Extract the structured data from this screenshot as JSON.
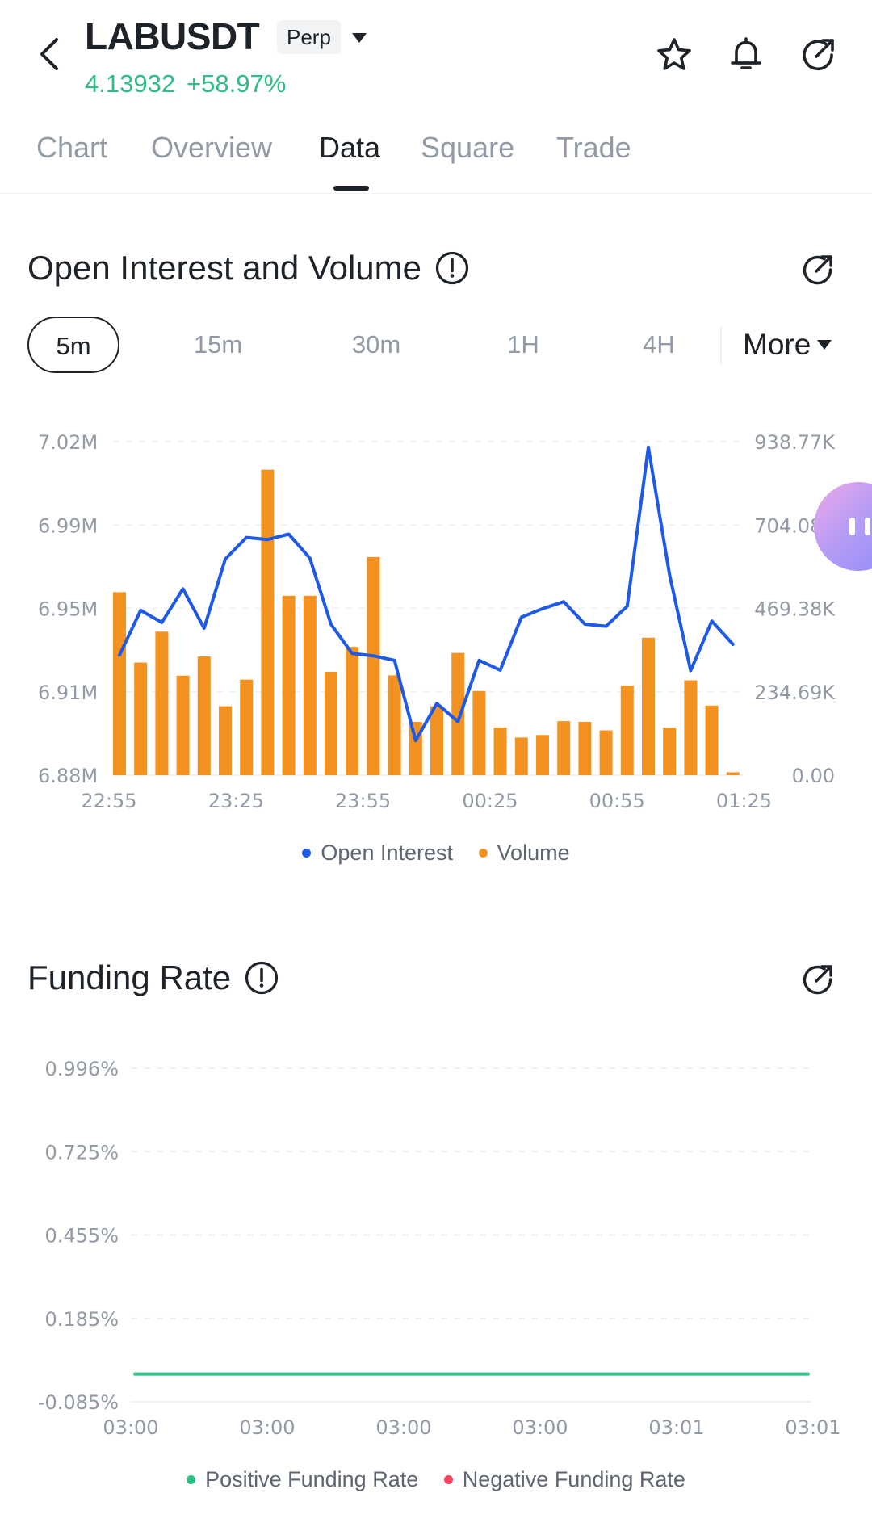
{
  "header": {
    "symbol": "LABUSDT",
    "badge": "Perp",
    "price": "4.13932",
    "change": "+58.97%",
    "icons": [
      "back-icon",
      "caret-down-icon",
      "star-icon",
      "bell-icon",
      "share-icon"
    ],
    "accent_green": "#2ebd85"
  },
  "tabs": [
    {
      "label": "Chart"
    },
    {
      "label": "Overview"
    },
    {
      "label": "Data",
      "active": true
    },
    {
      "label": "Square"
    },
    {
      "label": "Trade"
    }
  ],
  "oi_section": {
    "title": "Open Interest and Volume",
    "intervals": [
      "5m",
      "15m",
      "30m",
      "1H",
      "4H"
    ],
    "selected_interval": "5m",
    "more_label": "More",
    "legend": {
      "oi": "Open Interest",
      "volume": "Volume"
    }
  },
  "funding_section": {
    "title": "Funding Rate",
    "legend": {
      "positive": "Positive Funding Rate",
      "negative": "Negative Funding Rate"
    }
  },
  "chart_data": [
    {
      "type": "bar+line",
      "title": "Open Interest and Volume",
      "x_ticks": [
        "22:55",
        "23:25",
        "23:55",
        "00:25",
        "00:55",
        "01:25"
      ],
      "y_left_ticks": [
        "7.02M",
        "6.99M",
        "6.95M",
        "6.91M",
        "6.88M"
      ],
      "y_left_range": [
        6.88,
        7.02
      ],
      "y_right_ticks": [
        "938.77K",
        "704.08K",
        "469.38K",
        "234.69K",
        "0.00"
      ],
      "y_right_range": [
        0,
        938.77
      ],
      "grid": true,
      "legend_position": "bottom",
      "colors": {
        "oi": "#1e5ae6",
        "volume": "#f39220"
      },
      "series": [
        {
          "name": "Volume",
          "kind": "bar",
          "unit": "K",
          "values": [
            515,
            317,
            404,
            280,
            334,
            194,
            269,
            860,
            505,
            505,
            291,
            361,
            614,
            281,
            150,
            194,
            344,
            237,
            134,
            106,
            113,
            152,
            150,
            126,
            252,
            387,
            134,
            267,
            196,
            8
          ]
        },
        {
          "name": "Open Interest",
          "kind": "line",
          "unit": "M",
          "values": [
            6.9304,
            6.9492,
            6.9441,
            6.9582,
            6.9417,
            6.9707,
            6.9798,
            6.9789,
            6.9812,
            6.9711,
            6.9433,
            6.9311,
            6.9301,
            6.9282,
            6.8945,
            6.9101,
            6.9025,
            6.9282,
            6.9241,
            6.9463,
            6.9499,
            6.9528,
            6.9434,
            6.9425,
            6.9509,
            7.0177,
            6.9642,
            6.9239,
            6.9447,
            6.9349
          ]
        }
      ]
    },
    {
      "type": "line",
      "title": "Funding Rate",
      "x_ticks": [
        "03:00",
        "03:00",
        "03:00",
        "03:00",
        "03:01",
        "03:01"
      ],
      "y_ticks": [
        "0.996%",
        "0.725%",
        "0.455%",
        "0.185%",
        "-0.085%"
      ],
      "y_range": [
        -0.085,
        0.996
      ],
      "grid": true,
      "legend_position": "bottom",
      "colors": {
        "positive": "#2ebd85",
        "negative": "#f6465d"
      },
      "series": [
        {
          "name": "Positive Funding Rate",
          "values": [
            0.005,
            0.005,
            0.005,
            0.005,
            0.005,
            0.005,
            0.005,
            0.005,
            0.005,
            0.005,
            0.005,
            0.005,
            0.005,
            0.005,
            0.005,
            0.005,
            0.005,
            0.005,
            0.005,
            0.005,
            0.005,
            0.005,
            0.005,
            0.005,
            0.005,
            0.005,
            0.005,
            0.005,
            0.005,
            0.005,
            0.005,
            0.005,
            0.005,
            0.005,
            0.005,
            0.005,
            0.005,
            0.005,
            0.005,
            0.005,
            0.005,
            0.005,
            0.005,
            0.005,
            0.005,
            0.005,
            0.005,
            0.005,
            0.005,
            0.005,
            0.005,
            0.005,
            0.005,
            0.005,
            0.005,
            0.005,
            0.005,
            0.005,
            0.005,
            0.005,
            0.005,
            0.005,
            0.005,
            0.005,
            0.005,
            0.005,
            0.005,
            0.005,
            0.005,
            0.005,
            0.005,
            0.005,
            0.005,
            0.005,
            0.005,
            0.005,
            0.005,
            0.005,
            0.005,
            0.005,
            0.005,
            0.005,
            0.005,
            0.005,
            0.005,
            0.005,
            0.005,
            0.005,
            0.005,
            0.005,
            0.005,
            0.005,
            0.005,
            0.005,
            0.005,
            0.005,
            0.005,
            0.005,
            0.005,
            0.005,
            0.005,
            0.005,
            0.005,
            0.005,
            0.005,
            0.005,
            0.005,
            0.005,
            0.005,
            0.005,
            0.005,
            0.005,
            0.005,
            0.005,
            0.005,
            0.005,
            0.005,
            0.005,
            0.005,
            0.005,
            0.005,
            0.005,
            0.005,
            0.005,
            0.005,
            0.005,
            0.005,
            0.005,
            0.005,
            0.005,
            0.005,
            0.005,
            0.005,
            0.005,
            0.005,
            0.005,
            0.005,
            0.005,
            0.005,
            0.005,
            0.005,
            0.005,
            0.005,
            0.005,
            0.005,
            0.005,
            0.005,
            0.005,
            0.005,
            0.005
          ]
        }
      ]
    }
  ]
}
